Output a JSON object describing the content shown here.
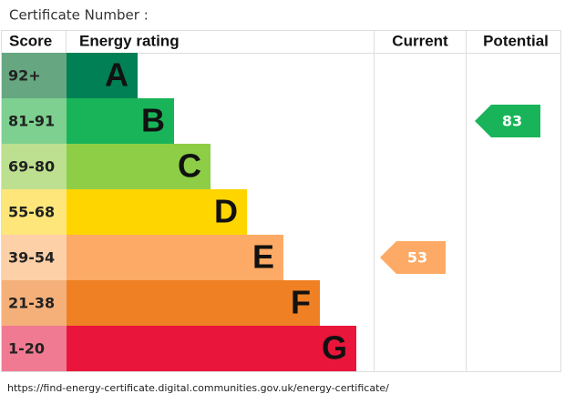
{
  "header": "Certificate Number :",
  "table": {
    "columns": [
      "Score",
      "Energy rating",
      "Current",
      "Potential"
    ],
    "bands": [
      {
        "score": "92+",
        "letter": "A",
        "color": "#008054",
        "score_color": "#66a680"
      },
      {
        "score": "81-91",
        "letter": "B",
        "color": "#19b459",
        "score_color": "#7dd08f"
      },
      {
        "score": "69-80",
        "letter": "C",
        "color": "#8dce46",
        "score_color": "#bce08f"
      },
      {
        "score": "55-68",
        "letter": "D",
        "color": "#ffd500",
        "score_color": "#ffe67a"
      },
      {
        "score": "39-54",
        "letter": "E",
        "color": "#fcaa65",
        "score_color": "#fdd0a8"
      },
      {
        "score": "21-38",
        "letter": "F",
        "color": "#ef8023",
        "score_color": "#f5b07a"
      },
      {
        "score": "1-20",
        "letter": "G",
        "color": "#e9153b",
        "score_color": "#f07a92"
      }
    ],
    "current": 53,
    "potential": 83
  },
  "footer": "https://find-energy-certificate.digital.communities.gov.uk/energy-certificate/"
}
